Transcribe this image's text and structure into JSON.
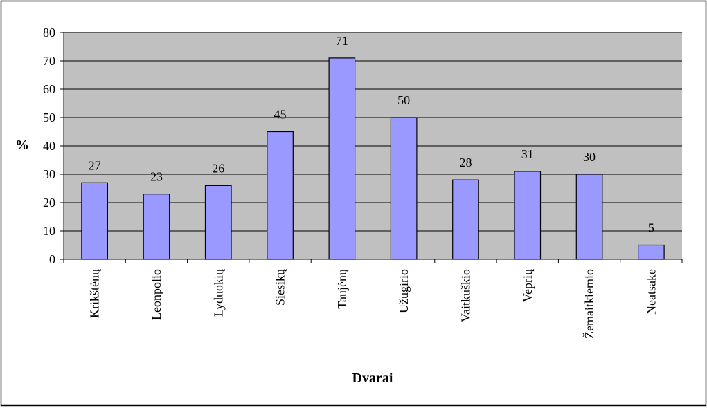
{
  "chart_data": {
    "type": "bar",
    "title": "",
    "xlabel": "Dvarai",
    "ylabel": "%",
    "categories": [
      "Krikštėnų",
      "Leonpolio",
      "Lyduokių",
      "Siesikų",
      "Taujėnų",
      "Užugirio",
      "Vaitkuškio",
      "Veprių",
      "Žemaitkiemio",
      "Neatsake"
    ],
    "values": [
      27,
      23,
      26,
      45,
      71,
      50,
      28,
      31,
      30,
      5
    ],
    "yticks": [
      "0",
      "10",
      "20",
      "30",
      "40",
      "50",
      "60",
      "70",
      "80"
    ],
    "ylim": [
      0,
      80
    ],
    "grid": true,
    "legend": "none",
    "colors": {
      "bar_fill": "#9999ff",
      "plot_background": "#c0c0c0",
      "grid_line": "#000000",
      "border": "#000000"
    }
  }
}
